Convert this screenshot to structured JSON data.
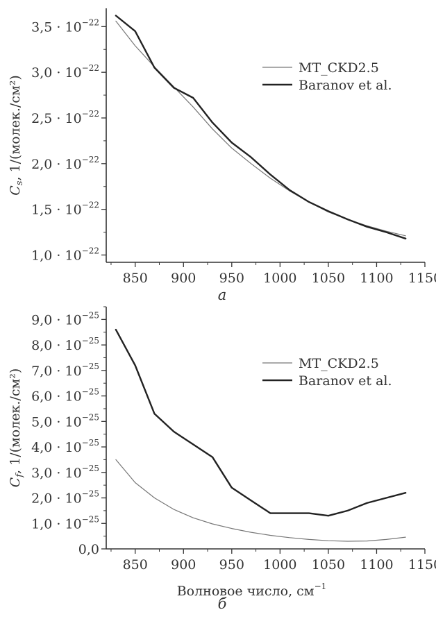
{
  "chart_data": [
    {
      "type": "line",
      "panel_label": "а",
      "ylabel": "C_s, 1/(молек./см²)",
      "xlim": [
        820,
        1150
      ],
      "ylim": [
        9.2e-23,
        3.7e-22
      ],
      "x_ticks": [
        850,
        900,
        950,
        1000,
        1050,
        1100,
        1150
      ],
      "x_tick_labels": [
        "850",
        "900",
        "950",
        "1000",
        "1050",
        "1100",
        "1150"
      ],
      "y_ticks": [
        1e-22,
        1.5e-22,
        2e-22,
        2.5e-22,
        3e-22,
        3.5e-22
      ],
      "y_tick_mantissas": [
        "1,0",
        "1,5",
        "2,0",
        "2,5",
        "3,0",
        "3,5"
      ],
      "y_tick_exponent": "−22",
      "legend_position": "top-right",
      "series": [
        {
          "name": "MT_CKD2.5",
          "color": "#777777",
          "width": 1.2,
          "x": [
            830,
            850,
            870,
            890,
            910,
            930,
            950,
            970,
            990,
            1010,
            1030,
            1050,
            1070,
            1090,
            1110,
            1130
          ],
          "y": [
            3.56e-22,
            3.29e-22,
            3.06e-22,
            2.84e-22,
            2.62e-22,
            2.38e-22,
            2.17e-22,
            2e-22,
            1.84e-22,
            1.7e-22,
            1.58e-22,
            1.47e-22,
            1.39e-22,
            1.32e-22,
            1.26e-22,
            1.21e-22
          ]
        },
        {
          "name": "Baranov et al.",
          "color": "#222222",
          "width": 2.4,
          "x": [
            830,
            850,
            870,
            890,
            910,
            930,
            950,
            970,
            990,
            1010,
            1030,
            1050,
            1070,
            1090,
            1110,
            1130
          ],
          "y": [
            3.62e-22,
            3.45e-22,
            3.05e-22,
            2.83e-22,
            2.72e-22,
            2.45e-22,
            2.23e-22,
            2.07e-22,
            1.88e-22,
            1.71e-22,
            1.58e-22,
            1.48e-22,
            1.39e-22,
            1.31e-22,
            1.25e-22,
            1.18e-22
          ]
        }
      ]
    },
    {
      "type": "line",
      "panel_label": "б",
      "ylabel": "C_f, 1/(молек./см²)",
      "xlabel": "Волновое число, см⁻¹",
      "xlim": [
        820,
        1150
      ],
      "ylim": [
        0,
        9.5e-25
      ],
      "x_ticks": [
        850,
        900,
        950,
        1000,
        1050,
        1100,
        1150
      ],
      "x_tick_labels": [
        "850",
        "900",
        "950",
        "1000",
        "1050",
        "1100",
        "1150"
      ],
      "y_ticks": [
        0,
        1e-25,
        2e-25,
        3e-25,
        4e-25,
        5e-25,
        6e-25,
        7e-25,
        8e-25,
        9e-25
      ],
      "y_tick_mantissas": [
        "0,0",
        "1,0",
        "2,0",
        "3,0",
        "4,0",
        "5,0",
        "6,0",
        "7,0",
        "8,0",
        "9,0"
      ],
      "y_tick_exponent": "−25",
      "legend_position": "top-right",
      "series": [
        {
          "name": "MT_CKD2.5",
          "color": "#777777",
          "width": 1.2,
          "x": [
            830,
            850,
            870,
            890,
            910,
            930,
            950,
            970,
            990,
            1010,
            1030,
            1050,
            1070,
            1090,
            1110,
            1130
          ],
          "y": [
            3.5e-25,
            2.6e-25,
            2e-25,
            1.55e-25,
            1.22e-25,
            9.8e-26,
            8e-26,
            6.5e-26,
            5.3e-26,
            4.4e-26,
            3.7e-26,
            3.2e-26,
            3e-26,
            3.1e-26,
            3.7e-26,
            4.6e-26
          ]
        },
        {
          "name": "Baranov et al.",
          "color": "#222222",
          "width": 2.4,
          "x": [
            830,
            850,
            870,
            890,
            910,
            930,
            950,
            970,
            990,
            1010,
            1030,
            1050,
            1070,
            1090,
            1110,
            1130
          ],
          "y": [
            8.6e-25,
            7.2e-25,
            5.3e-25,
            4.6e-25,
            4.1e-25,
            3.6e-25,
            2.4e-25,
            1.9e-25,
            1.4e-25,
            1.4e-25,
            1.4e-25,
            1.3e-25,
            1.5e-25,
            1.8e-25,
            2e-25,
            2.2e-25
          ]
        }
      ]
    }
  ]
}
